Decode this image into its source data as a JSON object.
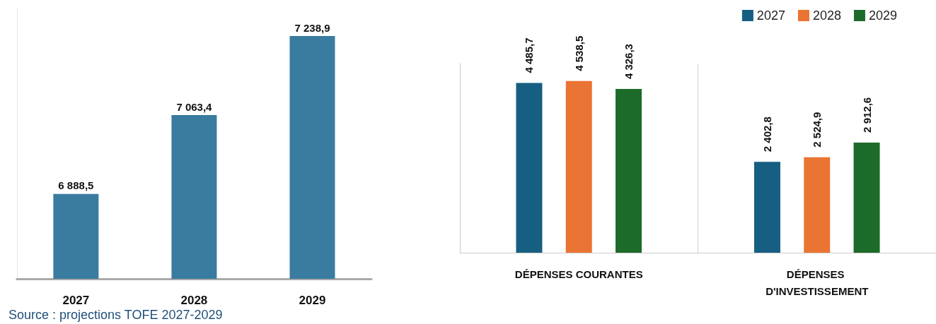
{
  "chart_data": [
    {
      "type": "bar",
      "categories": [
        "2027",
        "2028",
        "2029"
      ],
      "values": [
        6888.5,
        7063.4,
        7238.9
      ],
      "value_labels": [
        "6 888,5",
        "7 063,4",
        "7 238,9"
      ],
      "color": "#3a7ba0",
      "ylim": [
        6700,
        7300
      ],
      "tick_labels": "x",
      "legend": false,
      "annotations": [
        "Source : projections TOFE 2027-2029"
      ]
    },
    {
      "type": "bar",
      "categories": [
        "DÉPENSES COURANTES",
        "DÉPENSES D'INVESTISSEMENT"
      ],
      "ylim": [
        0,
        5000
      ],
      "tick_labels": "x",
      "legend": "top right",
      "series": [
        {
          "name": "2027",
          "color": "#175f82",
          "values": [
            4485.7,
            2402.8
          ],
          "value_labels": [
            "4 485,7",
            "2 402,8"
          ]
        },
        {
          "name": "2028",
          "color": "#ea7433",
          "values": [
            4538.5,
            2524.9
          ],
          "value_labels": [
            "4 538,5",
            "2 524,9"
          ]
        },
        {
          "name": "2029",
          "color": "#1d6b2a",
          "values": [
            4326.3,
            2912.6
          ],
          "value_labels": [
            "4 326,3",
            "2 912,6"
          ]
        }
      ]
    }
  ]
}
